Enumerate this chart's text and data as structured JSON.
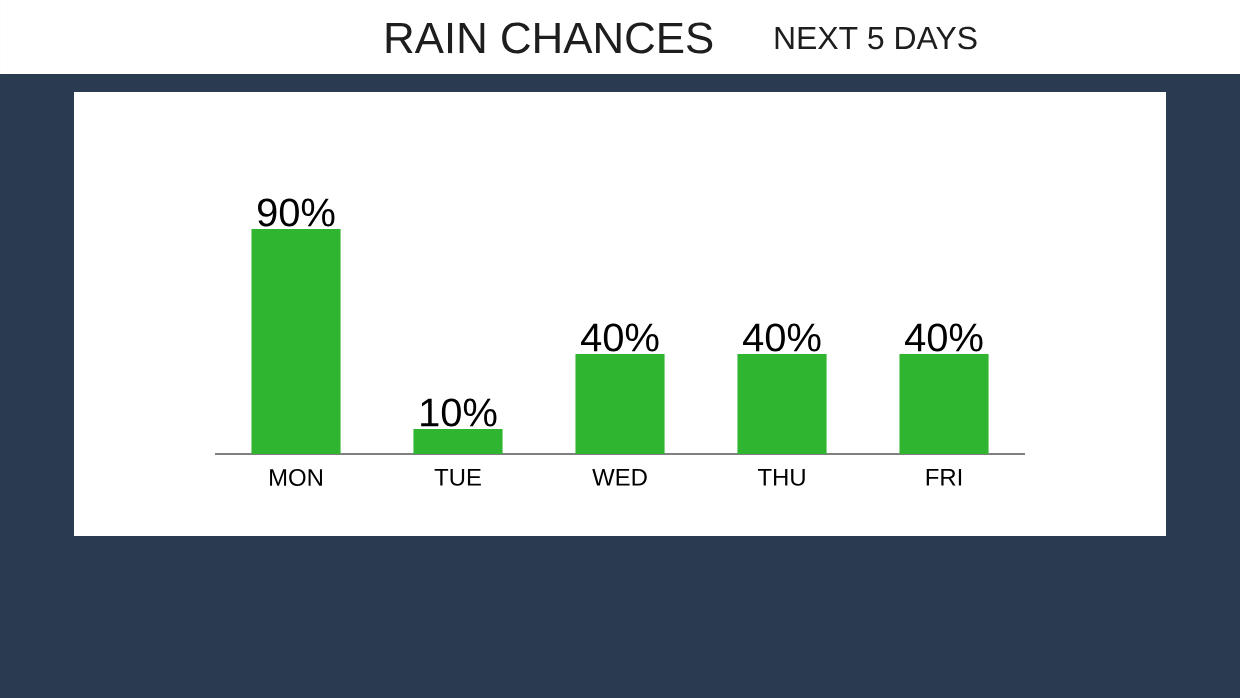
{
  "chart_data": {
    "type": "bar",
    "title": "RAIN CHANCES",
    "subtitle": "NEXT 5 DAYS",
    "categories": [
      "MON",
      "TUE",
      "WED",
      "THU",
      "FRI"
    ],
    "values": [
      90,
      10,
      40,
      40,
      40
    ],
    "value_labels": [
      "90%",
      "10%",
      "40%",
      "40%",
      "40%"
    ],
    "color": "#2fb52f"
  }
}
